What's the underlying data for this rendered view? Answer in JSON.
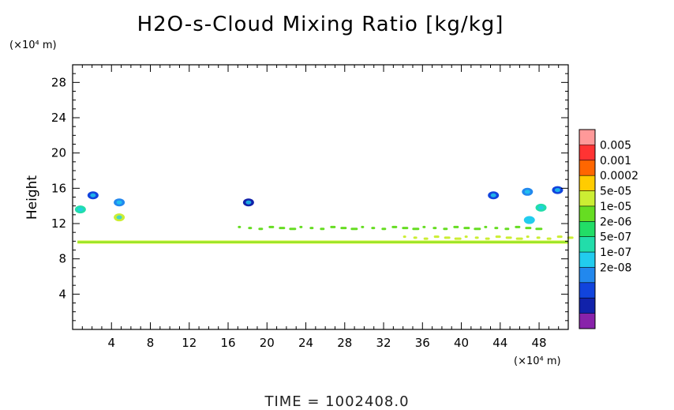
{
  "chart_data": {
    "type": "heatmap",
    "title": "H2O-s-Cloud Mixing Ratio [kg/kg]",
    "ylabel": "Height",
    "y_unit": "(×10⁴ m)",
    "x_unit": "(×10⁴ m)",
    "xlim": [
      0,
      51
    ],
    "ylim": [
      0,
      30
    ],
    "x_ticks": [
      "4",
      "8",
      "12",
      "16",
      "20",
      "24",
      "28",
      "32",
      "36",
      "40",
      "44",
      "48"
    ],
    "y_ticks": [
      "4",
      "8",
      "12",
      "16",
      "20",
      "24",
      "28"
    ],
    "colorbar": {
      "labels": [
        "0.005",
        "0.001",
        "0.0002",
        "5e-05",
        "1e-05",
        "2e-06",
        "5e-07",
        "1e-07",
        "2e-08"
      ],
      "colors": [
        "#ff9999",
        "#ff3333",
        "#ff6600",
        "#ffcc00",
        "#ccee33",
        "#66dd22",
        "#22dd66",
        "#22ddaa",
        "#22ccee",
        "#2288ee",
        "#1144dd",
        "#1122aa",
        "#8822aa"
      ]
    },
    "features": [
      {
        "kind": "band",
        "x": [
          0.5,
          51
        ],
        "y": 9.9,
        "color": "#ccee33"
      },
      {
        "kind": "blob",
        "x": 0.8,
        "y": 13.6,
        "color": "#22ddaa"
      },
      {
        "kind": "blob",
        "x": 2.1,
        "y": 15.2,
        "color": "#1144dd"
      },
      {
        "kind": "blob",
        "x": 4.8,
        "y": 14.4,
        "color": "#2288ee"
      },
      {
        "kind": "blob",
        "x": 4.8,
        "y": 12.7,
        "color": "#ccee33"
      },
      {
        "kind": "blob",
        "x": 18.1,
        "y": 14.4,
        "color": "#1122aa"
      },
      {
        "kind": "blob",
        "x": 43.3,
        "y": 15.2,
        "color": "#1144dd"
      },
      {
        "kind": "blob",
        "x": 49.9,
        "y": 15.8,
        "color": "#1144dd"
      },
      {
        "kind": "blob",
        "x": 46.8,
        "y": 15.6,
        "color": "#2288ee"
      },
      {
        "kind": "blob",
        "x": 48.2,
        "y": 13.8,
        "color": "#22ddaa"
      },
      {
        "kind": "blob",
        "x": 47.0,
        "y": 12.4,
        "color": "#22ccee"
      },
      {
        "kind": "streak",
        "x": [
          17,
          48
        ],
        "y": 11.5,
        "color": "#66dd22"
      },
      {
        "kind": "streak",
        "x": [
          34,
          51
        ],
        "y": 10.4,
        "color": "#ccee33"
      }
    ]
  },
  "footer": {
    "time_label": "TIME  =  1002408.0"
  }
}
